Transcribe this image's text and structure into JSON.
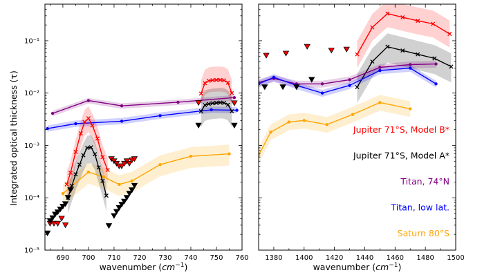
{
  "chart_data": {
    "type": "line",
    "ylabel": "Integrated optical thickness (τ)",
    "yscale": "log",
    "ylim": [
      1e-05,
      0.5
    ],
    "yticks": [
      {
        "value": 1e-05,
        "label": "10⁻⁵"
      },
      {
        "value": 0.0001,
        "label": "10⁻⁴"
      },
      {
        "value": 0.001,
        "label": "10⁻³"
      },
      {
        "value": 0.01,
        "label": "10⁻²"
      },
      {
        "value": 0.1,
        "label": "10⁻¹"
      }
    ],
    "legend_placement": "right panel, lower right",
    "panels": [
      {
        "name": "left",
        "xlabel_prefix": "wavenumber (",
        "xlabel_unit": "cm",
        "xlabel_exp": "−1",
        "xlabel_suffix": ")",
        "xlim": [
          683,
          760
        ],
        "xticks": [
          690,
          700,
          710,
          720,
          730,
          740,
          750,
          760
        ],
        "series": [
          {
            "name": "Titan, 74°N",
            "color": "#800080",
            "marker": "dot",
            "band": [
              0.88,
              1.12
            ],
            "x": [
              686,
              700,
              713,
              735,
              757
            ],
            "y": [
              0.0041,
              0.0072,
              0.0057,
              0.0067,
              0.0082
            ]
          },
          {
            "name": "Titan, low lat.",
            "color": "#0000ff",
            "marker": "dot",
            "band": [
              0.87,
              1.15
            ],
            "x": [
              684,
              695,
              713,
              728,
              748,
              758
            ],
            "y": [
              0.0021,
              0.0026,
              0.0029,
              0.0037,
              0.0048,
              0.0047
            ]
          },
          {
            "name": "Saturn 80°S",
            "color": "#ffa500",
            "marker": "dot",
            "band": [
              0.6,
              1.5
            ],
            "x": [
              690,
              700,
              706,
              712,
              717,
              728,
              740,
              755
            ],
            "y": [
              0.00012,
              0.00031,
              0.00025,
              0.00018,
              0.00021,
              0.00043,
              0.00062,
              0.00069
            ]
          },
          {
            "name": "Jupiter 71°S, Model B*",
            "color": "#ff0000",
            "marker": "x",
            "band": [
              0.55,
              1.7
            ],
            "x": [
              691.5,
              693,
              695,
              697,
              698.5,
              700,
              701.5,
              703.5,
              705.5,
              707.5
            ],
            "y": [
              0.00018,
              0.0003,
              0.00075,
              0.0017,
              0.0028,
              0.0033,
              0.0024,
              0.00135,
              0.0006,
              0.00034
            ]
          },
          {
            "name": "Jupiter 71°S, Model B*",
            "color": "#ff0000",
            "marker": "x",
            "band": [
              0.6,
              1.8
            ],
            "x": [
              744,
              745.5,
              747,
              748.5,
              750,
              751.5,
              753,
              754.5,
              756
            ],
            "y": [
              0.0098,
              0.0155,
              0.0172,
              0.0176,
              0.0178,
              0.0178,
              0.0175,
              0.0158,
              0.01
            ]
          },
          {
            "name": "Jupiter 71°S, Model A*",
            "color": "#000000",
            "marker": "x",
            "band": [
              0.5,
              1.7
            ],
            "x": [
              692,
              693.5,
              695,
              696.5,
              698,
              699.5,
              701,
              702.5,
              704,
              705.5,
              707
            ],
            "y": [
              0.0001,
              0.00017,
              0.00028,
              0.00043,
              0.00065,
              0.0009,
              0.00092,
              0.00068,
              0.00038,
              0.00021,
              0.00011
            ]
          },
          {
            "name": "Jupiter 71°S, Model A*",
            "color": "#000000",
            "marker": "x",
            "band": [
              0.5,
              1.9
            ],
            "x": [
              744,
              745.5,
              747,
              748.5,
              750,
              751.5,
              753,
              754.5,
              756
            ],
            "y": [
              0.0045,
              0.0059,
              0.0062,
              0.0064,
              0.0065,
              0.0066,
              0.0065,
              0.006,
              0.0045
            ]
          }
        ],
        "upper_limits": [
          {
            "color": "#ff0000",
            "x": [
              685,
              686.5,
              688,
              689.5,
              691,
              709,
              710,
              711,
              712,
              713,
              714,
              715,
              716,
              717,
              718,
              743,
              757
            ],
            "y": [
              3.2e-05,
              3.2e-05,
              3.2e-05,
              4e-05,
              3e-05,
              0.00055,
              0.0005,
              0.00045,
              0.0004,
              0.0004,
              0.00045,
              0.0005,
              0.00045,
              0.00052,
              0.00055,
              0.0065,
              0.0064
            ]
          },
          {
            "color": "#000000",
            "x": [
              684,
              685,
              686,
              687,
              688,
              689,
              690,
              691,
              692,
              693,
              708,
              710,
              711,
              712,
              713,
              714,
              715,
              716,
              717,
              718,
              743,
              757
            ],
            "y": [
              2.1e-05,
              3.6e-05,
              4.1e-05,
              4.8e-05,
              5.3e-05,
              6e-05,
              6.8e-05,
              7.6e-05,
              0.0001,
              0.00014,
              2.9e-05,
              4.5e-05,
              5.4e-05,
              6.4e-05,
              7.4e-05,
              8.5e-05,
              0.0001,
              0.00012,
              0.00014,
              0.00017,
              0.0024,
              0.0024
            ]
          }
        ]
      },
      {
        "name": "right",
        "xlabel_prefix": "wavenumber (",
        "xlabel_unit": "cm",
        "xlabel_exp": "−1",
        "xlabel_suffix": ")",
        "xlim": [
          1370,
          1500
        ],
        "xticks": [
          1380,
          1400,
          1420,
          1440,
          1460,
          1480,
          1500
        ],
        "series": [
          {
            "name": "Jupiter 71°S, Model B*",
            "color": "#ff0000",
            "marker": "x",
            "band": [
              0.55,
              1.8
            ],
            "x": [
              1435,
              1445,
              1455,
              1465,
              1475,
              1485,
              1496
            ],
            "y": [
              0.055,
              0.18,
              0.33,
              0.28,
              0.24,
              0.21,
              0.135
            ]
          },
          {
            "name": "Jupiter 71°S, Model A*",
            "color": "#000000",
            "marker": "x",
            "band": [
              0.5,
              1.8
            ],
            "x": [
              1435,
              1445,
              1455,
              1465,
              1475,
              1486,
              1497
            ],
            "y": [
              0.013,
              0.04,
              0.077,
              0.065,
              0.055,
              0.046,
              0.032
            ]
          },
          {
            "name": "Titan, 74°N",
            "color": "#800080",
            "marker": "dot",
            "band": [
              0.85,
              1.15
            ],
            "x": [
              1370,
              1380,
              1395,
              1412,
              1430,
              1450,
              1470,
              1487
            ],
            "y": [
              0.016,
              0.019,
              0.015,
              0.015,
              0.018,
              0.031,
              0.035,
              0.036
            ]
          },
          {
            "name": "Titan, low lat.",
            "color": "#0000ff",
            "marker": "dot",
            "band": [
              0.85,
              1.15
            ],
            "x": [
              1370,
              1380,
              1395,
              1412,
              1430,
              1450,
              1470,
              1487
            ],
            "y": [
              0.015,
              0.02,
              0.014,
              0.01,
              0.014,
              0.027,
              0.03,
              0.015
            ]
          },
          {
            "name": "Saturn 80°S",
            "color": "#ffa500",
            "marker": "dot",
            "band": [
              0.7,
              1.4
            ],
            "x": [
              1370,
              1378,
              1390,
              1400,
              1415,
              1432,
              1450,
              1470
            ],
            "y": [
              0.00065,
              0.0018,
              0.0028,
              0.003,
              0.0025,
              0.0039,
              0.0066,
              0.005
            ]
          }
        ],
        "upper_limits": [
          {
            "color": "#ff0000",
            "x": [
              1375,
              1388,
              1402,
              1418,
              1428
            ],
            "y": [
              0.052,
              0.057,
              0.077,
              0.065,
              0.068
            ]
          },
          {
            "color": "#000000",
            "x": [
              1374,
              1386,
              1395,
              1405
            ],
            "y": [
              0.013,
              0.013,
              0.013,
              0.018
            ]
          }
        ]
      }
    ],
    "legend": [
      {
        "label": "Jupiter 71°S, Model B*",
        "color": "#ff0000"
      },
      {
        "label": "Jupiter 71°S, Model A*",
        "color": "#000000"
      },
      {
        "label": "Titan, 74°N",
        "color": "#800080"
      },
      {
        "label": "Titan, low lat.",
        "color": "#0000ff"
      },
      {
        "label": "Saturn 80°S",
        "color": "#ffa500"
      }
    ]
  }
}
